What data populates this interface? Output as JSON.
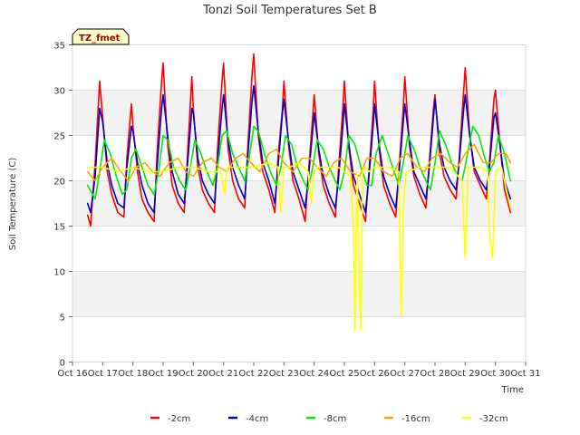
{
  "chart_data": {
    "type": "line",
    "title": "Tonzi Soil Temperatures Set B",
    "xlabel": "Time",
    "ylabel": "Soil Temperature (C)",
    "badge": "TZ_fmet",
    "xlim": [
      16,
      31
    ],
    "ylim": [
      0,
      35
    ],
    "xticks": [
      16,
      17,
      18,
      19,
      20,
      21,
      22,
      23,
      24,
      25,
      26,
      27,
      28,
      29,
      30,
      31
    ],
    "xtick_labels": [
      "Oct 16",
      "Oct 17",
      "Oct 18",
      "Oct 19",
      "Oct 20",
      "Oct 21",
      "Oct 22",
      "Oct 23",
      "Oct 24",
      "Oct 25",
      "Oct 26",
      "Oct 27",
      "Oct 28",
      "Oct 29",
      "Oct 30",
      "Oct 31"
    ],
    "yticks": [
      0,
      5,
      10,
      15,
      20,
      25,
      30,
      35
    ],
    "grid_bands": true,
    "legend_position": "bottom",
    "x_unit": "day of October",
    "series": [
      {
        "name": "-2cm",
        "color": "#ff0000",
        "x": [
          16.5,
          16.6,
          16.75,
          16.9,
          17.0,
          17.15,
          17.3,
          17.5,
          17.7,
          17.8,
          17.95,
          18.0,
          18.15,
          18.3,
          18.5,
          18.7,
          18.8,
          18.95,
          19.0,
          19.15,
          19.3,
          19.5,
          19.7,
          19.8,
          19.95,
          20.0,
          20.15,
          20.3,
          20.5,
          20.7,
          20.8,
          20.95,
          21.0,
          21.15,
          21.3,
          21.5,
          21.7,
          21.8,
          21.95,
          22.0,
          22.15,
          22.3,
          22.5,
          22.7,
          22.8,
          22.95,
          23.0,
          23.15,
          23.3,
          23.5,
          23.7,
          23.8,
          23.95,
          24.0,
          24.15,
          24.3,
          24.5,
          24.7,
          24.8,
          24.95,
          25.0,
          25.15,
          25.3,
          25.5,
          25.7,
          25.8,
          25.95,
          26.0,
          26.15,
          26.3,
          26.5,
          26.7,
          26.8,
          26.95,
          27.0,
          27.15,
          27.3,
          27.5,
          27.7,
          27.8,
          27.95,
          28.0,
          28.15,
          28.3,
          28.5,
          28.7,
          28.8,
          28.95,
          29.0,
          29.15,
          29.3,
          29.5,
          29.7,
          29.8,
          29.95,
          30.0,
          30.15,
          30.3,
          30.5
        ],
        "y": [
          16.2,
          15.0,
          22.0,
          31.0,
          27.0,
          21.0,
          18.5,
          16.5,
          16.0,
          22.5,
          28.5,
          26.0,
          21.0,
          18.0,
          16.5,
          15.5,
          23.0,
          31.0,
          33.0,
          24.0,
          19.5,
          17.5,
          16.5,
          22.5,
          31.5,
          28.0,
          21.5,
          19.0,
          17.5,
          16.5,
          23.5,
          31.0,
          33.0,
          23.5,
          20.0,
          18.0,
          17.0,
          23.5,
          32.0,
          34.0,
          25.0,
          21.0,
          19.0,
          16.5,
          22.5,
          28.0,
          31.0,
          24.0,
          20.0,
          18.0,
          15.5,
          20.5,
          27.0,
          29.5,
          23.0,
          19.5,
          17.5,
          16.0,
          21.0,
          28.0,
          31.0,
          23.5,
          19.5,
          17.5,
          15.5,
          20.5,
          27.5,
          31.0,
          23.5,
          19.5,
          17.5,
          16.0,
          21.0,
          28.0,
          31.5,
          24.0,
          20.5,
          18.5,
          17.0,
          21.5,
          28.0,
          29.5,
          23.0,
          20.5,
          19.0,
          18.0,
          22.5,
          30.0,
          32.5,
          25.0,
          21.0,
          19.5,
          18.0,
          22.0,
          29.0,
          30.0,
          24.0,
          19.0,
          16.5
        ]
      },
      {
        "name": "-4cm",
        "color": "#0000cc",
        "x": [
          16.5,
          16.6,
          16.75,
          16.9,
          17.0,
          17.15,
          17.3,
          17.5,
          17.7,
          17.8,
          17.95,
          18.0,
          18.15,
          18.3,
          18.5,
          18.7,
          18.8,
          18.95,
          19.0,
          19.15,
          19.3,
          19.5,
          19.7,
          19.8,
          19.95,
          20.0,
          20.15,
          20.3,
          20.5,
          20.7,
          20.8,
          20.95,
          21.0,
          21.15,
          21.3,
          21.5,
          21.7,
          21.8,
          21.95,
          22.0,
          22.15,
          22.3,
          22.5,
          22.7,
          22.8,
          22.95,
          23.0,
          23.15,
          23.3,
          23.5,
          23.7,
          23.8,
          23.95,
          24.0,
          24.15,
          24.3,
          24.5,
          24.7,
          24.8,
          24.95,
          25.0,
          25.15,
          25.3,
          25.5,
          25.7,
          25.8,
          25.95,
          26.0,
          26.15,
          26.3,
          26.5,
          26.7,
          26.8,
          26.95,
          27.0,
          27.15,
          27.3,
          27.5,
          27.7,
          27.8,
          27.95,
          28.0,
          28.15,
          28.3,
          28.5,
          28.7,
          28.8,
          28.95,
          29.0,
          29.15,
          29.3,
          29.5,
          29.7,
          29.8,
          29.95,
          30.0,
          30.15,
          30.3,
          30.5
        ],
        "y": [
          17.5,
          16.5,
          20.5,
          28.0,
          26.5,
          22.0,
          19.5,
          17.5,
          17.0,
          21.5,
          26.0,
          25.5,
          22.0,
          19.5,
          17.5,
          16.5,
          21.5,
          28.0,
          29.5,
          25.0,
          21.0,
          18.5,
          17.5,
          21.5,
          28.0,
          27.5,
          22.5,
          20.0,
          18.5,
          17.5,
          22.0,
          28.0,
          29.5,
          24.5,
          21.5,
          19.5,
          18.0,
          22.5,
          29.0,
          30.5,
          25.5,
          22.0,
          20.0,
          17.5,
          21.5,
          27.5,
          29.0,
          24.5,
          21.0,
          19.0,
          17.0,
          20.0,
          25.5,
          27.5,
          23.5,
          20.5,
          18.5,
          17.0,
          20.0,
          26.0,
          28.5,
          24.0,
          20.5,
          18.5,
          16.5,
          20.0,
          26.0,
          28.5,
          24.0,
          20.5,
          18.5,
          17.0,
          20.5,
          26.5,
          28.5,
          24.5,
          21.0,
          19.5,
          18.0,
          21.0,
          27.0,
          29.0,
          24.0,
          21.5,
          20.0,
          19.0,
          22.0,
          28.0,
          29.5,
          25.0,
          21.5,
          20.0,
          19.0,
          21.5,
          27.0,
          27.5,
          24.0,
          20.0,
          18.0
        ]
      },
      {
        "name": "-8cm",
        "color": "#00ee00",
        "x": [
          16.5,
          16.75,
          16.9,
          17.05,
          17.25,
          17.45,
          17.65,
          17.8,
          17.95,
          18.1,
          18.3,
          18.5,
          18.7,
          18.85,
          19.0,
          19.15,
          19.35,
          19.55,
          19.75,
          19.9,
          20.05,
          20.25,
          20.45,
          20.65,
          20.8,
          20.95,
          21.1,
          21.3,
          21.5,
          21.7,
          21.85,
          22.0,
          22.15,
          22.35,
          22.55,
          22.75,
          22.9,
          23.05,
          23.25,
          23.45,
          23.65,
          23.8,
          23.95,
          24.1,
          24.3,
          24.5,
          24.7,
          24.85,
          25.0,
          25.15,
          25.35,
          25.55,
          25.75,
          25.9,
          26.05,
          26.25,
          26.45,
          26.65,
          26.8,
          26.95,
          27.1,
          27.3,
          27.5,
          27.7,
          27.85,
          28.0,
          28.15,
          28.35,
          28.55,
          28.75,
          28.9,
          29.05,
          29.25,
          29.45,
          29.65,
          29.8,
          29.95,
          30.1,
          30.3,
          30.5
        ],
        "y": [
          19.5,
          18.0,
          21.0,
          24.5,
          23.0,
          20.5,
          18.5,
          19.0,
          22.5,
          23.5,
          21.5,
          19.5,
          18.5,
          21.0,
          25.0,
          24.5,
          21.5,
          20.0,
          19.0,
          21.5,
          24.5,
          23.0,
          21.0,
          19.5,
          21.5,
          25.0,
          25.5,
          23.0,
          21.5,
          20.0,
          22.5,
          26.0,
          25.5,
          23.0,
          21.0,
          19.5,
          21.5,
          25.0,
          24.0,
          21.5,
          20.0,
          19.0,
          21.5,
          24.5,
          23.5,
          21.5,
          20.0,
          19.0,
          21.0,
          25.0,
          24.0,
          21.5,
          19.5,
          19.5,
          23.0,
          25.0,
          23.0,
          21.0,
          19.5,
          22.0,
          25.0,
          23.5,
          21.5,
          20.0,
          19.0,
          22.0,
          25.5,
          24.0,
          22.0,
          20.5,
          20.0,
          22.5,
          26.0,
          25.0,
          22.5,
          21.0,
          22.0,
          25.0,
          23.0,
          20.0
        ]
      },
      {
        "name": "-16cm",
        "color": "#ffa500",
        "x": [
          16.5,
          16.75,
          17.0,
          17.3,
          17.6,
          17.85,
          18.1,
          18.4,
          18.65,
          18.9,
          19.2,
          19.5,
          19.75,
          20.0,
          20.3,
          20.6,
          20.85,
          21.1,
          21.4,
          21.65,
          21.9,
          22.2,
          22.5,
          22.75,
          23.0,
          23.3,
          23.6,
          23.85,
          24.1,
          24.4,
          24.65,
          24.9,
          25.2,
          25.5,
          25.75,
          26.0,
          26.3,
          26.6,
          26.85,
          27.1,
          27.4,
          27.65,
          27.9,
          28.2,
          28.5,
          28.75,
          29.0,
          29.3,
          29.6,
          29.85,
          30.1,
          30.35,
          30.5
        ],
        "y": [
          21.0,
          20.0,
          21.5,
          22.5,
          21.0,
          20.0,
          21.5,
          22.0,
          21.0,
          20.5,
          22.0,
          22.5,
          21.0,
          20.5,
          22.0,
          22.5,
          21.5,
          21.0,
          22.5,
          23.0,
          22.0,
          21.0,
          23.0,
          23.5,
          22.0,
          21.0,
          22.5,
          22.5,
          21.5,
          20.5,
          22.0,
          22.5,
          21.0,
          20.5,
          22.5,
          22.5,
          21.0,
          20.5,
          22.5,
          23.0,
          21.5,
          21.0,
          22.5,
          23.0,
          22.0,
          21.5,
          23.0,
          24.0,
          22.0,
          22.0,
          23.0,
          23.0,
          22.0
        ]
      },
      {
        "name": "-32cm",
        "color": "#ffff00",
        "x": [
          16.5,
          17.0,
          17.5,
          18.0,
          18.5,
          19.0,
          19.5,
          20.0,
          20.5,
          20.9,
          21.05,
          21.1,
          21.15,
          21.3,
          21.5,
          22.0,
          22.5,
          22.8,
          22.9,
          23.0,
          23.2,
          23.5,
          23.8,
          23.9,
          24.0,
          24.1,
          24.4,
          24.8,
          25.0,
          25.2,
          25.3,
          25.35,
          25.42,
          25.5,
          25.55,
          25.6,
          25.65,
          25.7,
          25.8,
          26.0,
          26.5,
          26.8,
          26.88,
          26.95,
          27.05,
          27.5,
          28.0,
          28.5,
          28.9,
          29.0,
          29.1,
          29.2,
          29.5,
          29.75,
          29.8,
          29.9,
          29.95,
          30.0,
          30.2,
          30.5
        ],
        "y": [
          21.5,
          21.5,
          21.0,
          21.5,
          21.0,
          21.0,
          21.5,
          21.5,
          21.0,
          21.0,
          18.5,
          21.0,
          21.5,
          21.5,
          21.5,
          21.5,
          22.0,
          21.5,
          16.5,
          21.5,
          21.5,
          22.0,
          21.0,
          17.5,
          21.0,
          21.5,
          21.5,
          21.5,
          21.0,
          20.5,
          15.0,
          3.5,
          21.0,
          8.0,
          3.5,
          21.0,
          21.5,
          21.5,
          21.0,
          21.5,
          21.5,
          21.0,
          5.0,
          17.0,
          21.0,
          21.5,
          21.5,
          21.5,
          20.0,
          11.5,
          21.5,
          21.5,
          21.5,
          21.0,
          14.5,
          11.5,
          15.0,
          21.0,
          21.5,
          17.0
        ]
      }
    ]
  }
}
